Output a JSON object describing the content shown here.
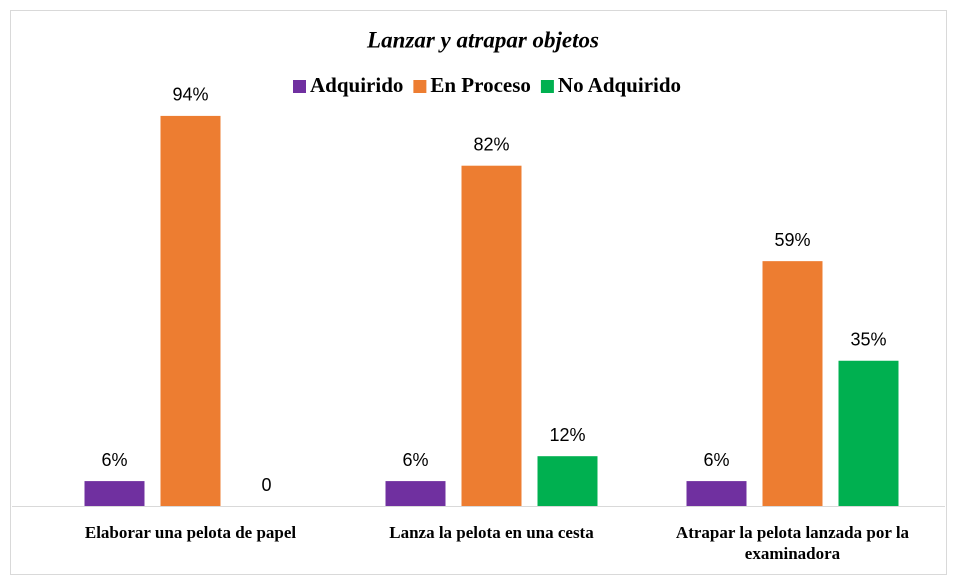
{
  "chart_data": {
    "type": "bar",
    "title": "Lanzar y atrapar objetos",
    "categories": [
      "Elaborar una pelota de papel",
      "Lanza la pelota en una cesta",
      "Atrapar la pelota lanzada por la examinadora"
    ],
    "series": [
      {
        "name": "Adquirido",
        "color": "#7030a0",
        "values": [
          6,
          6,
          6
        ],
        "value_labels": [
          "6%",
          "6%",
          "6%"
        ]
      },
      {
        "name": "En Proceso",
        "color": "#ed7d31",
        "values": [
          94,
          82,
          59
        ],
        "value_labels": [
          "94%",
          "82%",
          "59%"
        ]
      },
      {
        "name": "No Adquirido",
        "color": "#00b050",
        "values": [
          0,
          12,
          35
        ],
        "value_labels": [
          "0",
          "12%",
          "35%"
        ]
      }
    ]
  }
}
